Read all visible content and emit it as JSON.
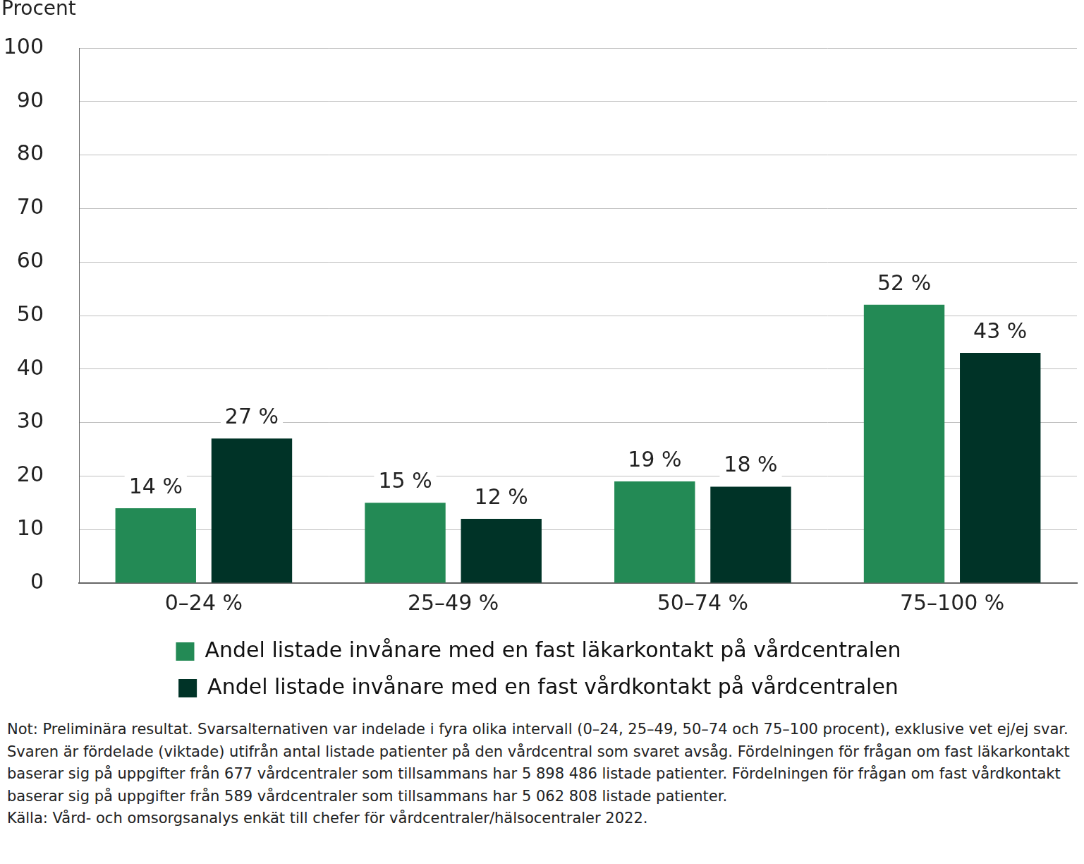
{
  "chart_data": {
    "type": "bar",
    "ylabel": "Procent",
    "categories": [
      "0–24 %",
      "25–49 %",
      "50–74 %",
      "75–100 %"
    ],
    "series": [
      {
        "name": "Andel listade invånare med en fast läkarkontakt på vårdcentralen",
        "color": "#238a55",
        "values": [
          14,
          15,
          19,
          52
        ],
        "value_labels": [
          "14 %",
          "15 %",
          "19 %",
          "52 %"
        ]
      },
      {
        "name": "Andel listade invånare med en fast vårdkontakt på vårdcentralen",
        "color": "#003327",
        "values": [
          27,
          12,
          18,
          43
        ],
        "value_labels": [
          "27 %",
          "12 %",
          "18 %",
          "43 %"
        ]
      }
    ],
    "ylim": [
      0,
      100
    ],
    "yticks": [
      0,
      10,
      20,
      30,
      40,
      50,
      60,
      70,
      80,
      90,
      100
    ],
    "grid": true,
    "legend": "bottom",
    "data_labels": true,
    "notes": [
      "Not: Preliminära resultat. Svarsalternativen var indelade i fyra olika intervall (0–24, 25–49, 50–74 och 75–100 procent), exklusive vet ej/ej svar. Svaren är fördelade (viktade) utifrån antal listade patienter på den vårdcentral som svaret avsåg. Fördelningen för frågan om fast läkarkontakt baserar sig på uppgifter från 677 vårdcentraler som tillsammans har 5 898 486 listade patienter. Fördelningen för frågan om fast vårdkontakt baserar sig på uppgifter från 589 vårdcentraler som tillsammans har 5 062 808 listade patienter.",
      "Källa: Vård- och omsorgsanalys enkät till chefer för vårdcentraler/hälsocentraler 2022."
    ]
  }
}
